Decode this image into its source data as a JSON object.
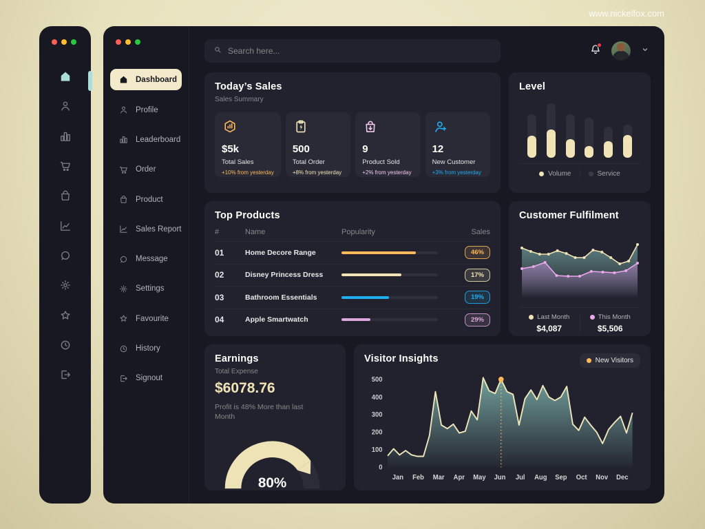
{
  "site": {
    "url": "www.nickelfox.com"
  },
  "topbar": {
    "search_placeholder": "Search here..."
  },
  "sidebar": {
    "items": [
      {
        "label": "Dashboard",
        "icon": "home",
        "active": true
      },
      {
        "label": "Profile",
        "icon": "person"
      },
      {
        "label": "Leaderboard",
        "icon": "leaderboard"
      },
      {
        "label": "Order",
        "icon": "cart"
      },
      {
        "label": "Product",
        "icon": "bag"
      },
      {
        "label": "Sales Report",
        "icon": "chart"
      },
      {
        "label": "Message",
        "icon": "message"
      },
      {
        "label": "Settings",
        "icon": "gear"
      },
      {
        "label": "Favourite",
        "icon": "star"
      },
      {
        "label": "History",
        "icon": "history"
      },
      {
        "label": "Signout",
        "icon": "signout"
      }
    ]
  },
  "today_sales": {
    "title": "Today’s Sales",
    "subtitle": "Sales Summary",
    "cards": [
      {
        "value": "$5k",
        "label": "Total Sales",
        "delta": "+10% from yesterday",
        "color": "#FEB95A",
        "icon": "hex-bars"
      },
      {
        "value": "500",
        "label": "Total Order",
        "delta": "+8% from yesterday",
        "color": "#F1E3B6",
        "icon": "clipboard-bolt"
      },
      {
        "value": "9",
        "label": "Product Sold",
        "delta": "+2% from yesterday",
        "color": "#F2C8ED",
        "icon": "bag-arrow"
      },
      {
        "value": "12",
        "label": "New Customer",
        "delta": "+3% from yesterday",
        "color": "#20AEF3",
        "icon": "user-plus"
      }
    ]
  },
  "level": {
    "title": "Level",
    "legend": [
      {
        "label": "Volume",
        "color": "#F1E3B6"
      },
      {
        "label": "Service",
        "color": "#3A3B47"
      }
    ]
  },
  "top_products": {
    "title": "Top Products",
    "headers": [
      "#",
      "Name",
      "Popularity",
      "Sales"
    ],
    "rows": [
      {
        "num": "01",
        "name": "Home Decore Range",
        "popularity": 77,
        "sales": "46%",
        "color": "#FEB95A"
      },
      {
        "num": "02",
        "name": "Disney Princess Dress",
        "popularity": 62,
        "sales": "17%",
        "color": "#F1E3B6"
      },
      {
        "num": "03",
        "name": "Bathroom Essentials",
        "popularity": 49,
        "sales": "19%",
        "color": "#20AEF3"
      },
      {
        "num": "04",
        "name": "Apple Smartwatch",
        "popularity": 30,
        "sales": "29%",
        "color": "#DCA5DC"
      }
    ]
  },
  "customer_fulfilment": {
    "title": "Customer Fulfilment",
    "legend": [
      {
        "label": "Last Month",
        "value": "$4,087",
        "color": "#F1E3B6"
      },
      {
        "label": "This Month",
        "value": "$5,506",
        "color": "#ECA8EC"
      }
    ]
  },
  "earnings": {
    "title": "Earnings",
    "subtitle": "Total Expense",
    "amount": "$6078.76",
    "note": "Profit is 48% More than last Month",
    "gauge_label": "80%"
  },
  "visitor_insights": {
    "title": "Visitor Insights",
    "legend": "New Visitors"
  },
  "chart_data": [
    {
      "id": "level",
      "type": "bar",
      "categories": [
        "1",
        "2",
        "3",
        "4",
        "5",
        "6"
      ],
      "series": [
        {
          "name": "Service",
          "values": [
            80,
            100,
            80,
            73,
            57,
            61
          ],
          "color": "#2E2F3B"
        },
        {
          "name": "Volume",
          "values": [
            41,
            52,
            34,
            21,
            31,
            42
          ],
          "color": "#F1E3B6"
        }
      ],
      "ylim": [
        0,
        100
      ],
      "legend_position": "bottom",
      "grid": false
    },
    {
      "id": "customer-fulfilment",
      "type": "area",
      "series": [
        {
          "name": "Last Month",
          "values": [
            74,
            69,
            65,
            65,
            70,
            66,
            60,
            60,
            71,
            68,
            60,
            51,
            55,
            79
          ],
          "color": "#F1E3B6",
          "fill": "#7FB5AE"
        },
        {
          "name": "This Month",
          "values": [
            44,
            47,
            53,
            34,
            33,
            33,
            40,
            39,
            38,
            41,
            52
          ],
          "color": "#ECA8EC",
          "fill": "#B084C4"
        }
      ],
      "ylim": [
        0,
        100
      ],
      "grid": false
    },
    {
      "id": "earnings-gauge",
      "type": "gauge",
      "value": 80,
      "max": 100,
      "label": "80%",
      "arc_color": "#EDE3B6",
      "track_color": "#2B2C38"
    },
    {
      "id": "visitor-insights",
      "type": "area",
      "x_labels": [
        "Jan",
        "Feb",
        "Mar",
        "Apr",
        "May",
        "Jun",
        "Jul",
        "Aug",
        "Sep",
        "Oct",
        "Nov",
        "Dec"
      ],
      "values": [
        65,
        105,
        70,
        95,
        70,
        62,
        62,
        180,
        430,
        240,
        220,
        245,
        195,
        205,
        320,
        270,
        510,
        435,
        420,
        500,
        430,
        415,
        240,
        390,
        440,
        385,
        465,
        400,
        380,
        400,
        460,
        245,
        210,
        285,
        240,
        200,
        135,
        215,
        255,
        290,
        195,
        310
      ],
      "marked_point": {
        "index": 19,
        "value": 500
      },
      "yticks": [
        0,
        100,
        200,
        300,
        400,
        500
      ],
      "ylim": [
        0,
        520
      ],
      "series_name": "New Visitors",
      "line_color": "#EFE6BC",
      "fill_color": "#7FB5AE",
      "marker_color": "#FEB95A",
      "grid": false,
      "legend_position": "top-right"
    }
  ]
}
